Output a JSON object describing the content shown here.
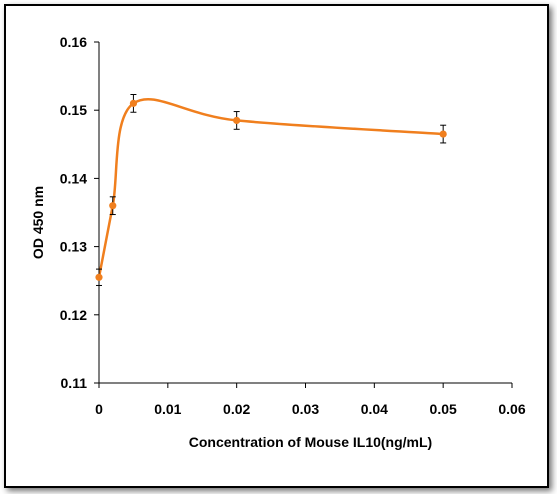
{
  "chart_data": {
    "type": "line",
    "title": "",
    "xlabel": "Concentration of Mouse IL10(ng/mL)",
    "ylabel": "OD 450 nm",
    "xlim": [
      0,
      0.06
    ],
    "ylim": [
      0.11,
      0.16
    ],
    "x_ticks": [
      "0",
      "0.01",
      "0.02",
      "0.03",
      "0.04",
      "0.05",
      "0.06"
    ],
    "y_ticks": [
      "0.11",
      "0.12",
      "0.13",
      "0.14",
      "0.15",
      "0.16"
    ],
    "grid": false,
    "legend": "none",
    "smooth": true,
    "series": [
      {
        "color": "#f07f1e",
        "x": [
          0,
          0.002,
          0.005,
          0.02,
          0.05
        ],
        "y": [
          0.1255,
          0.136,
          0.151,
          0.1485,
          0.1465
        ],
        "error": [
          0.0012,
          0.0013,
          0.0013,
          0.0013,
          0.0013
        ]
      }
    ]
  }
}
